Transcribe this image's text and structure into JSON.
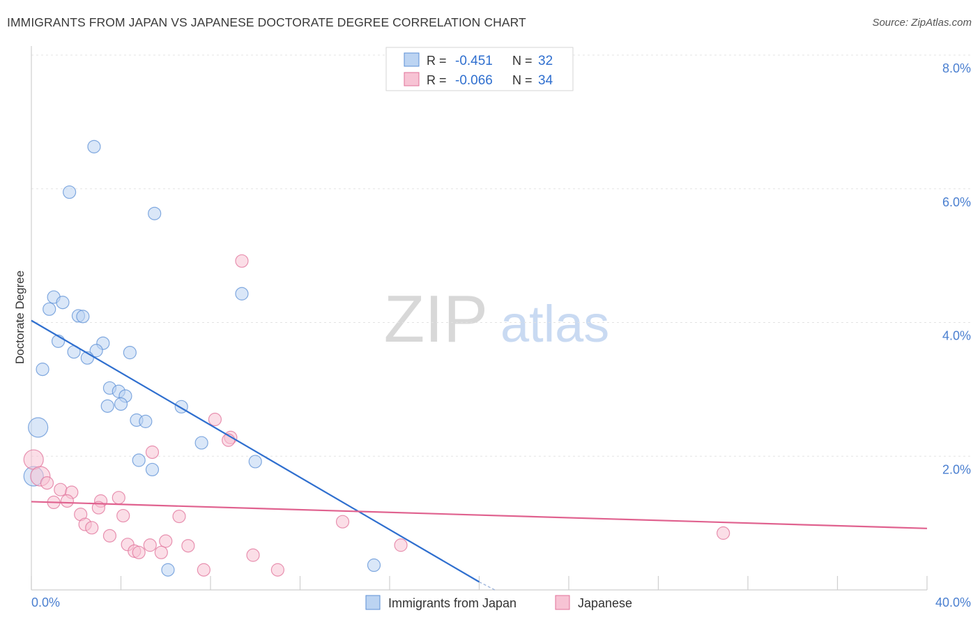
{
  "chart_data": {
    "type": "scatter",
    "title": "IMMIGRANTS FROM JAPAN VS JAPANESE DOCTORATE DEGREE CORRELATION CHART",
    "source": "Source: ZipAtlas.com",
    "xlabel": "",
    "ylabel": "Doctorate Degree",
    "xlim": [
      0,
      40
    ],
    "ylim": [
      0,
      8
    ],
    "x_tick_labels": {
      "min": "0.0%",
      "max": "40.0%"
    },
    "y_ticks": [
      {
        "value": 2,
        "label": "2.0%"
      },
      {
        "value": 4,
        "label": "4.0%"
      },
      {
        "value": 6,
        "label": "6.0%"
      },
      {
        "value": 8,
        "label": "8.0%"
      }
    ],
    "watermark": {
      "zip": "ZIP",
      "atlas": "atlas"
    },
    "legend_position": "top-center",
    "series": [
      {
        "name": "Immigrants from Japan",
        "color": "#5b8fd6",
        "fill": "#bcd4f2",
        "R": "-0.451",
        "N": "32",
        "trend": {
          "x0": 0.0,
          "y0": 4.03,
          "x1": 20.0,
          "y1": 0.12
        },
        "trend_dashed_extension": {
          "x0": 20.0,
          "y0": 0.12,
          "x1": 20.7,
          "y1": 0.0
        },
        "points": [
          {
            "x": 2.8,
            "y": 6.63
          },
          {
            "x": 1.7,
            "y": 5.95
          },
          {
            "x": 5.5,
            "y": 5.63
          },
          {
            "x": 9.4,
            "y": 4.43
          },
          {
            "x": 1.0,
            "y": 4.38
          },
          {
            "x": 0.8,
            "y": 4.2
          },
          {
            "x": 1.4,
            "y": 4.3
          },
          {
            "x": 2.1,
            "y": 4.1
          },
          {
            "x": 2.3,
            "y": 4.09
          },
          {
            "x": 1.2,
            "y": 3.72
          },
          {
            "x": 3.2,
            "y": 3.69
          },
          {
            "x": 1.9,
            "y": 3.56
          },
          {
            "x": 2.9,
            "y": 3.58
          },
          {
            "x": 4.4,
            "y": 3.55
          },
          {
            "x": 2.5,
            "y": 3.47
          },
          {
            "x": 0.5,
            "y": 3.3
          },
          {
            "x": 3.5,
            "y": 3.02
          },
          {
            "x": 3.9,
            "y": 2.97
          },
          {
            "x": 4.2,
            "y": 2.9
          },
          {
            "x": 4.0,
            "y": 2.78
          },
          {
            "x": 3.4,
            "y": 2.75
          },
          {
            "x": 6.7,
            "y": 2.74
          },
          {
            "x": 4.7,
            "y": 2.54
          },
          {
            "x": 5.1,
            "y": 2.52
          },
          {
            "x": 0.3,
            "y": 2.43
          },
          {
            "x": 7.6,
            "y": 2.2
          },
          {
            "x": 4.8,
            "y": 1.94
          },
          {
            "x": 10.0,
            "y": 1.92
          },
          {
            "x": 5.4,
            "y": 1.8
          },
          {
            "x": 0.1,
            "y": 1.7
          },
          {
            "x": 15.3,
            "y": 0.37
          },
          {
            "x": 6.1,
            "y": 0.3
          }
        ]
      },
      {
        "name": "Japanese",
        "color": "#e07098",
        "fill": "#f7c3d4",
        "R": "-0.066",
        "N": "34",
        "trend": {
          "x0": 0.0,
          "y0": 1.32,
          "x1": 40.0,
          "y1": 0.92
        },
        "points": [
          {
            "x": 9.4,
            "y": 4.92
          },
          {
            "x": 8.2,
            "y": 2.55
          },
          {
            "x": 8.9,
            "y": 2.28
          },
          {
            "x": 8.8,
            "y": 2.24
          },
          {
            "x": 5.4,
            "y": 2.06
          },
          {
            "x": 0.1,
            "y": 1.95
          },
          {
            "x": 0.4,
            "y": 1.7
          },
          {
            "x": 0.7,
            "y": 1.6
          },
          {
            "x": 1.3,
            "y": 1.5
          },
          {
            "x": 1.8,
            "y": 1.46
          },
          {
            "x": 3.9,
            "y": 1.38
          },
          {
            "x": 3.1,
            "y": 1.33
          },
          {
            "x": 1.6,
            "y": 1.33
          },
          {
            "x": 1.0,
            "y": 1.31
          },
          {
            "x": 3.0,
            "y": 1.23
          },
          {
            "x": 2.2,
            "y": 1.13
          },
          {
            "x": 4.1,
            "y": 1.11
          },
          {
            "x": 6.6,
            "y": 1.1
          },
          {
            "x": 13.9,
            "y": 1.02
          },
          {
            "x": 2.4,
            "y": 0.98
          },
          {
            "x": 2.7,
            "y": 0.93
          },
          {
            "x": 3.5,
            "y": 0.81
          },
          {
            "x": 30.9,
            "y": 0.85
          },
          {
            "x": 6.0,
            "y": 0.73
          },
          {
            "x": 4.3,
            "y": 0.68
          },
          {
            "x": 5.3,
            "y": 0.67
          },
          {
            "x": 7.0,
            "y": 0.66
          },
          {
            "x": 16.5,
            "y": 0.67
          },
          {
            "x": 4.6,
            "y": 0.58
          },
          {
            "x": 4.8,
            "y": 0.56
          },
          {
            "x": 5.8,
            "y": 0.56
          },
          {
            "x": 9.9,
            "y": 0.52
          },
          {
            "x": 7.7,
            "y": 0.3
          },
          {
            "x": 11.0,
            "y": 0.3
          }
        ]
      }
    ]
  }
}
